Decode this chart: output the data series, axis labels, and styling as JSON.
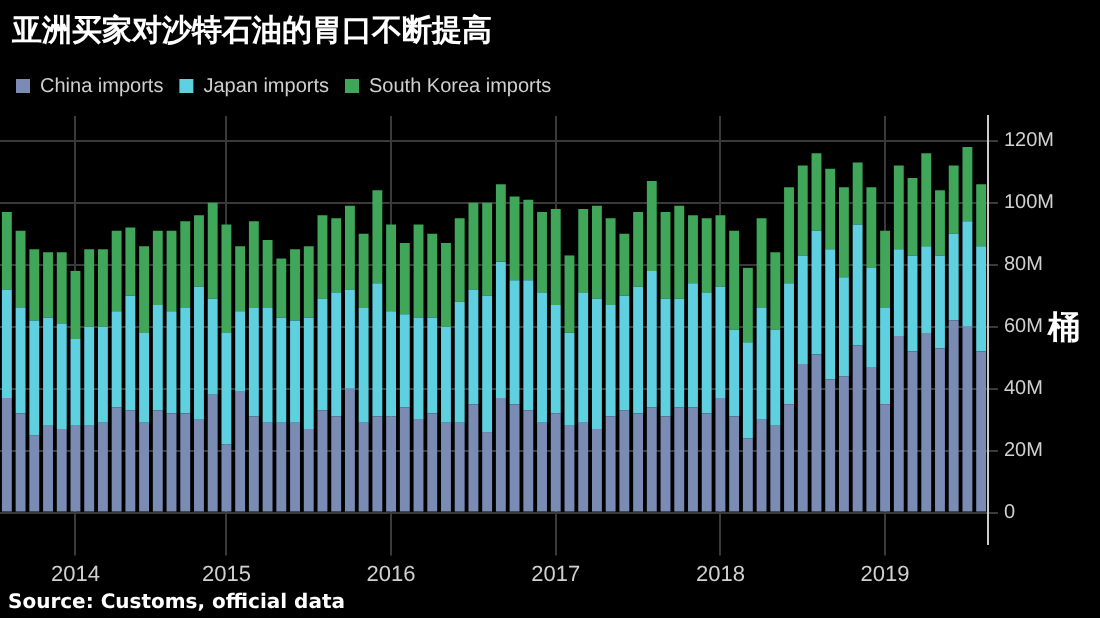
{
  "chart_data": {
    "type": "bar",
    "title": "亚洲买家对沙特石油的胃口不断提高",
    "ylabel": "桶",
    "annotations": [
      "Source: Customs, official data"
    ],
    "categories": [
      null,
      null,
      null,
      null,
      null,
      "2014",
      null,
      null,
      null,
      null,
      null,
      null,
      null,
      null,
      null,
      null,
      "2015",
      null,
      null,
      null,
      null,
      null,
      null,
      null,
      null,
      null,
      null,
      null,
      "2016",
      null,
      null,
      null,
      null,
      null,
      null,
      null,
      null,
      null,
      null,
      null,
      "2017",
      null,
      null,
      null,
      null,
      null,
      null,
      null,
      null,
      null,
      null,
      null,
      "2018",
      null,
      null,
      null,
      null,
      null,
      null,
      null,
      null,
      null,
      null,
      null,
      "2019",
      null,
      null,
      null,
      null,
      null,
      null,
      null
    ],
    "stacked": true,
    "legend": "top left",
    "grid": true,
    "ylim": [
      -10,
      128
    ],
    "yticks": [
      {
        "value": 0,
        "label": "0"
      },
      {
        "value": 20,
        "label": "20M"
      },
      {
        "value": 40,
        "label": "40M"
      },
      {
        "value": 60,
        "label": "60M"
      },
      {
        "value": 80,
        "label": "80M"
      },
      {
        "value": 100,
        "label": "100M"
      },
      {
        "value": 120,
        "label": "120M"
      }
    ],
    "series": [
      {
        "name": "China imports",
        "color": "#7b8cb4",
        "values": [
          37,
          32,
          25,
          28,
          27,
          28,
          28,
          29,
          34,
          33,
          29,
          33,
          32,
          32,
          30,
          38,
          22,
          39,
          31,
          29,
          29,
          29,
          27,
          33,
          31,
          40,
          29,
          31,
          31,
          34,
          30,
          32,
          29,
          29,
          35,
          26,
          37,
          35,
          33,
          29,
          32,
          28,
          29,
          27,
          31,
          33,
          32,
          34,
          31,
          34,
          34,
          32,
          37,
          31,
          24,
          30,
          28,
          35,
          48,
          51,
          43,
          44,
          54,
          47,
          35,
          57,
          52,
          58,
          53,
          62,
          60,
          52
        ]
      },
      {
        "name": "Japan imports",
        "color": "#5fd0e0",
        "values": [
          35,
          34,
          37,
          35,
          34,
          28,
          32,
          31,
          31,
          37,
          29,
          34,
          33,
          34,
          43,
          31,
          36,
          26,
          35,
          37,
          34,
          33,
          36,
          36,
          40,
          32,
          37,
          43,
          34,
          30,
          33,
          31,
          31,
          39,
          37,
          44,
          44,
          40,
          42,
          42,
          35,
          30,
          42,
          42,
          36,
          37,
          41,
          44,
          38,
          35,
          40,
          39,
          36,
          28,
          31,
          36,
          31,
          39,
          35,
          40,
          42,
          32,
          39,
          32,
          31,
          28,
          31,
          28,
          30,
          28,
          34,
          34
        ]
      },
      {
        "name": "South Korea imports",
        "color": "#3fa65a",
        "values": [
          25,
          25,
          23,
          21,
          23,
          22,
          25,
          25,
          26,
          22,
          28,
          24,
          26,
          28,
          23,
          31,
          35,
          21,
          28,
          22,
          19,
          23,
          23,
          27,
          24,
          27,
          24,
          30,
          28,
          23,
          30,
          27,
          27,
          27,
          28,
          30,
          25,
          27,
          26,
          26,
          31,
          25,
          27,
          30,
          28,
          20,
          24,
          29,
          28,
          30,
          22,
          24,
          23,
          32,
          24,
          29,
          25,
          31,
          29,
          25,
          26,
          29,
          20,
          26,
          25,
          27,
          25,
          30,
          21,
          22,
          24,
          20
        ]
      }
    ]
  }
}
